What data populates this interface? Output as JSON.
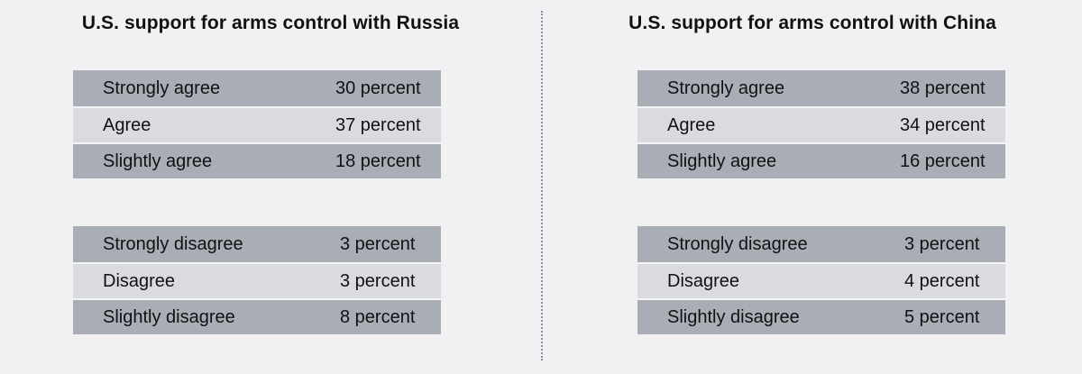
{
  "chart_data": [
    {
      "type": "table",
      "title": "U.S. support for arms control with Russia",
      "agree": [
        {
          "label": "Strongly agree",
          "value": 30,
          "text": "30 percent"
        },
        {
          "label": "Agree",
          "value": 37,
          "text": "37 percent"
        },
        {
          "label": "Slightly agree",
          "value": 18,
          "text": "18 percent"
        }
      ],
      "disagree": [
        {
          "label": "Strongly disagree",
          "value": 3,
          "text": "3 percent"
        },
        {
          "label": "Disagree",
          "value": 3,
          "text": "3 percent"
        },
        {
          "label": "Slightly disagree",
          "value": 8,
          "text": "8 percent"
        }
      ]
    },
    {
      "type": "table",
      "title": "U.S. support for arms control with China",
      "agree": [
        {
          "label": "Strongly agree",
          "value": 38,
          "text": "38 percent"
        },
        {
          "label": "Agree",
          "value": 34,
          "text": "34 percent"
        },
        {
          "label": "Slightly agree",
          "value": 16,
          "text": "16 percent"
        }
      ],
      "disagree": [
        {
          "label": "Strongly disagree",
          "value": 3,
          "text": "3 percent"
        },
        {
          "label": "Disagree",
          "value": 4,
          "text": "4 percent"
        },
        {
          "label": "Slightly disagree",
          "value": 5,
          "text": "5 percent"
        }
      ]
    }
  ],
  "colors": {
    "background": "#f1f1f3",
    "row_dark": "#a9aeb6",
    "row_light": "#d9dbe0",
    "divider": "#8d9098"
  }
}
